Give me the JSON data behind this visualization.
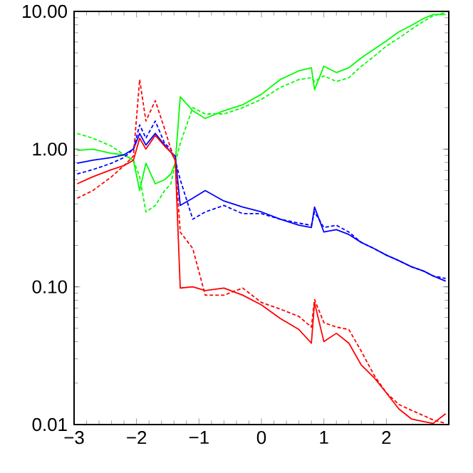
{
  "chart_data": {
    "type": "line",
    "x": [
      -2.95,
      -2.7,
      -2.4,
      -2.2,
      -2.05,
      -1.95,
      -1.85,
      -1.7,
      -1.55,
      -1.45,
      -1.38,
      -1.3,
      -1.1,
      -0.9,
      -0.6,
      -0.3,
      0,
      0.3,
      0.6,
      0.8,
      0.85,
      1.0,
      1.2,
      1.4,
      1.6,
      1.8,
      2.0,
      2.2,
      2.4,
      2.6,
      2.75,
      2.95
    ],
    "series": [
      {
        "color": "#00ff00",
        "line_style": "solid",
        "values": [
          0.98,
          1.0,
          0.93,
          0.91,
          0.83,
          0.5,
          0.79,
          0.56,
          0.6,
          0.66,
          0.79,
          2.4,
          1.9,
          1.67,
          1.9,
          2.1,
          2.5,
          3.2,
          3.7,
          3.9,
          2.7,
          4.0,
          3.6,
          3.9,
          4.6,
          5.3,
          6.1,
          7.1,
          7.9,
          8.9,
          9.5,
          9.5
        ]
      },
      {
        "color": "#00ff00",
        "line_style": "dashed",
        "values": [
          1.3,
          1.2,
          1.05,
          0.91,
          0.83,
          0.63,
          0.35,
          0.39,
          0.5,
          0.56,
          0.79,
          1.1,
          2.0,
          1.8,
          1.8,
          2.0,
          2.3,
          2.8,
          3.2,
          3.3,
          3.1,
          3.4,
          3.1,
          3.3,
          4.0,
          4.7,
          5.6,
          6.4,
          7.4,
          8.5,
          9.3,
          9.8
        ]
      },
      {
        "color": "#0000ff",
        "line_style": "solid",
        "values": [
          0.79,
          0.83,
          0.87,
          0.91,
          1.0,
          1.3,
          1.07,
          1.3,
          1.07,
          0.95,
          0.89,
          0.39,
          0.44,
          0.5,
          0.42,
          0.38,
          0.35,
          0.31,
          0.28,
          0.27,
          0.38,
          0.25,
          0.26,
          0.24,
          0.21,
          0.19,
          0.17,
          0.155,
          0.14,
          0.13,
          0.12,
          0.11
        ]
      },
      {
        "color": "#0000ff",
        "line_style": "dashed",
        "values": [
          0.66,
          0.71,
          0.79,
          0.87,
          1.0,
          1.5,
          1.2,
          1.6,
          1.1,
          1.0,
          0.83,
          0.6,
          0.31,
          0.35,
          0.39,
          0.34,
          0.34,
          0.31,
          0.29,
          0.28,
          0.35,
          0.27,
          0.28,
          0.25,
          0.21,
          0.19,
          0.17,
          0.155,
          0.14,
          0.13,
          0.12,
          0.115
        ]
      },
      {
        "color": "#ff0000",
        "line_style": "solid",
        "values": [
          0.56,
          0.63,
          0.71,
          0.76,
          0.83,
          1.2,
          1.0,
          1.26,
          1.05,
          0.95,
          0.83,
          0.098,
          0.1,
          0.094,
          0.098,
          0.087,
          0.074,
          0.059,
          0.049,
          0.039,
          0.077,
          0.04,
          0.046,
          0.039,
          0.027,
          0.022,
          0.017,
          0.013,
          0.011,
          0.0105,
          0.0102,
          0.012
        ]
      },
      {
        "color": "#ff0000",
        "line_style": "dashed",
        "values": [
          0.44,
          0.5,
          0.63,
          0.76,
          0.89,
          3.2,
          1.6,
          2.25,
          1.4,
          1.0,
          0.83,
          0.25,
          0.19,
          0.087,
          0.087,
          0.098,
          0.077,
          0.069,
          0.061,
          0.051,
          0.081,
          0.055,
          0.051,
          0.049,
          0.034,
          0.023,
          0.017,
          0.014,
          0.0127,
          0.0116,
          0.0108,
          0.0102
        ]
      }
    ],
    "log": "y",
    "xlim": [
      -3,
      3
    ],
    "ylim": [
      0.01,
      10
    ],
    "xticks": [
      {
        "value": -3,
        "label": "−3"
      },
      {
        "value": -2,
        "label": "−2"
      },
      {
        "value": -1,
        "label": "−1"
      },
      0,
      1,
      2
    ],
    "yticks": [
      {
        "value": 0.01,
        "label": "0.01"
      },
      {
        "value": 0.1,
        "label": "0.10"
      },
      {
        "value": 1,
        "label": "1.00"
      },
      {
        "value": 10,
        "label": "10.00"
      }
    ]
  }
}
